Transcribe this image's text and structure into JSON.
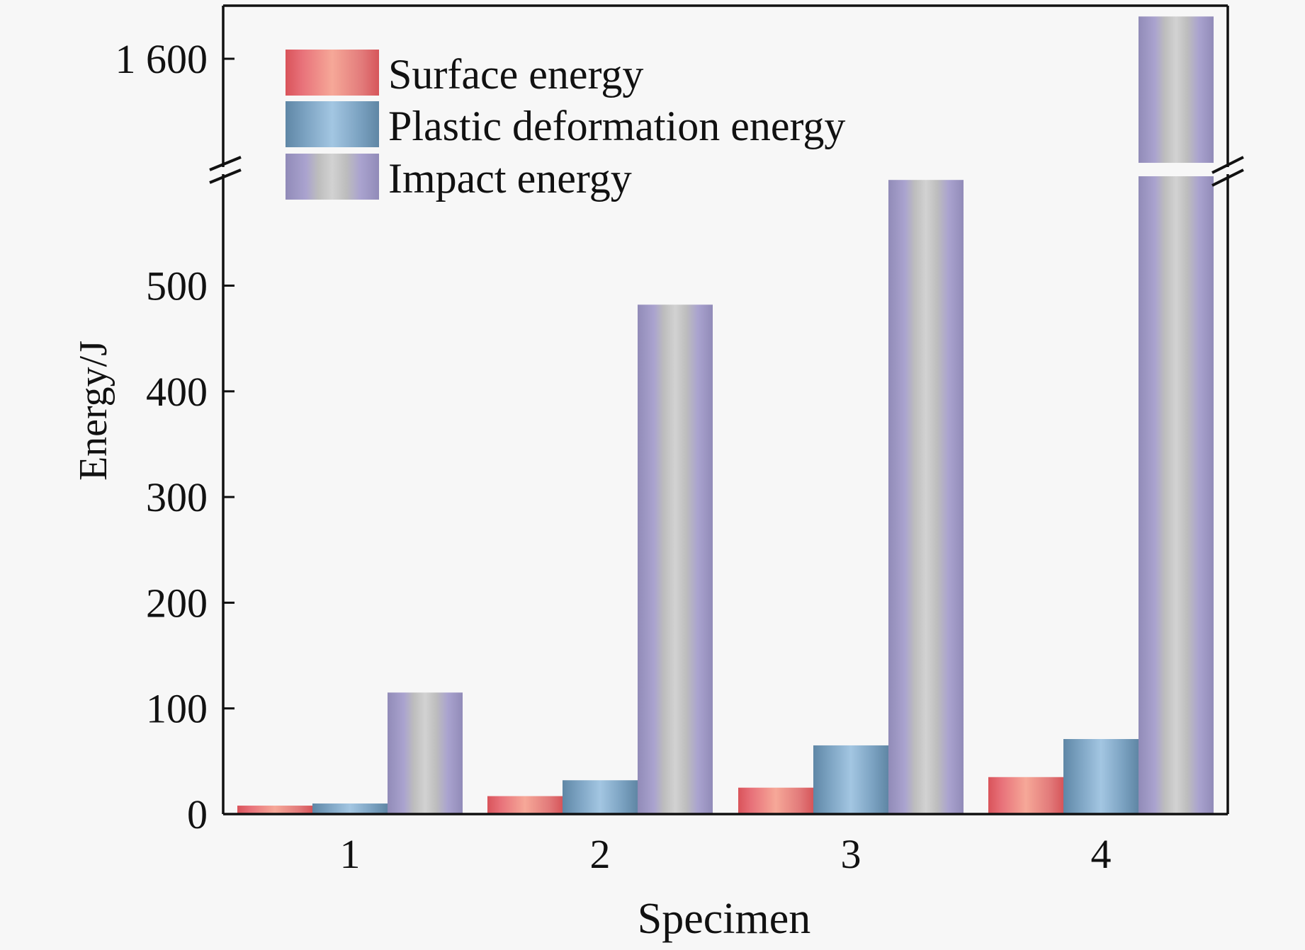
{
  "chart_data": {
    "type": "bar",
    "title": "",
    "xlabel": "Specimen",
    "ylabel": "Energy/J",
    "categories": [
      "1",
      "2",
      "3",
      "4"
    ],
    "series": [
      {
        "name": "Surface energy",
        "color": "#e8737a",
        "values": [
          8,
          17,
          25,
          35
        ]
      },
      {
        "name": "Plastic deformation energy",
        "color": "#8fb3d3",
        "values": [
          10,
          32,
          65,
          71
        ]
      },
      {
        "name": "Impact energy",
        "color": "#a8a3cb",
        "values": [
          115,
          482,
          600,
          1640
        ]
      }
    ],
    "y_axis": {
      "broken": true,
      "lower_segment": {
        "range": [
          0,
          600
        ],
        "ticks": [
          0,
          100,
          200,
          300,
          400,
          500
        ],
        "tick_labels": [
          "0",
          "100",
          "200",
          "300",
          "400",
          "500"
        ]
      },
      "upper_segment": {
        "range": [
          1500,
          1650
        ],
        "ticks": [
          1600
        ],
        "tick_labels": [
          "1 600"
        ]
      }
    },
    "grid": false,
    "legend": {
      "placement": "top-left",
      "entries": [
        "Surface energy",
        "Plastic deformation energy",
        "Impact energy"
      ]
    }
  }
}
